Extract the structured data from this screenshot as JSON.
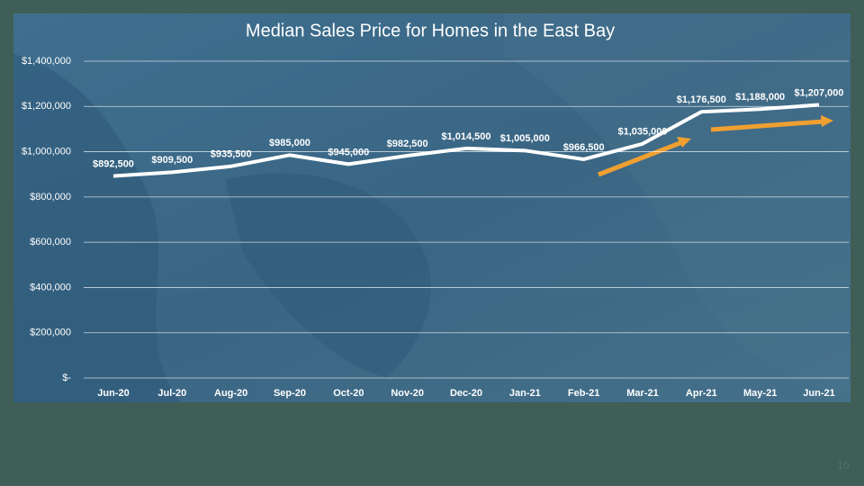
{
  "chart_data": {
    "type": "line",
    "title": "Median Sales Price for Homes in the East Bay",
    "categories": [
      "Jun-20",
      "Jul-20",
      "Aug-20",
      "Sep-20",
      "Oct-20",
      "Nov-20",
      "Dec-20",
      "Jan-21",
      "Feb-21",
      "Mar-21",
      "Apr-21",
      "May-21",
      "Jun-21"
    ],
    "series": [
      {
        "name": "Median Sales Price",
        "color": "#ffffff",
        "values": [
          892500,
          909500,
          935500,
          985000,
          945000,
          982500,
          1014500,
          1005000,
          966500,
          1035000,
          1176500,
          1188000,
          1207000
        ],
        "value_labels": [
          "$892,500",
          "$909,500",
          "$935,500",
          "$985,000",
          "$945,000",
          "$982,500",
          "$1,014,500",
          "$1,005,000",
          "$966,500",
          "$1,035,000",
          "$1,176,500",
          "$1,188,000",
          "$1,207,000"
        ]
      }
    ],
    "ylim": [
      0,
      1400000
    ],
    "yticks": [
      {
        "value": 0,
        "label": "$-"
      },
      {
        "value": 200000,
        "label": "$200,000"
      },
      {
        "value": 400000,
        "label": "$400,000"
      },
      {
        "value": 600000,
        "label": "$600,000"
      },
      {
        "value": 800000,
        "label": "$800,000"
      },
      {
        "value": 1000000,
        "label": "$1,000,000"
      },
      {
        "value": 1200000,
        "label": "$1,200,000"
      },
      {
        "value": 1400000,
        "label": "$1,400,000"
      }
    ],
    "grid": true
  },
  "slide": {
    "page_number": "10"
  }
}
